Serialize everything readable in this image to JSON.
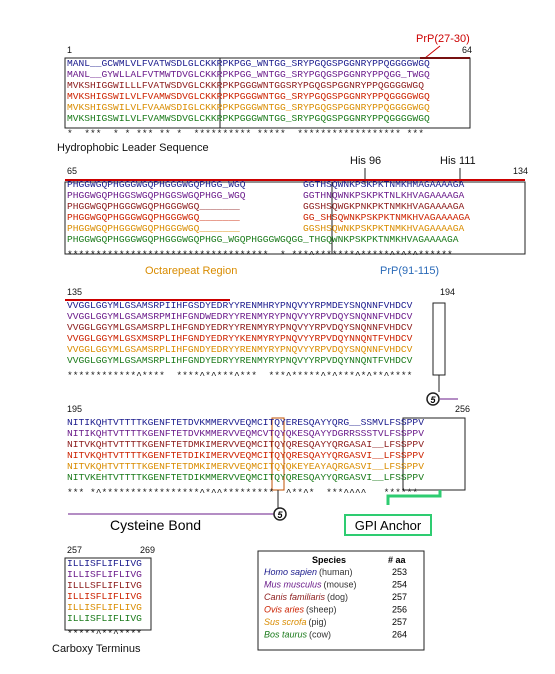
{
  "labels": {
    "prp2730": "PrP(27-30)",
    "hydrophobic": "Hydrophobic Leader Sequence",
    "his96": "His 96",
    "his111": "His 111",
    "octarepeat": "Octarepeat Region",
    "prp91115": "PrP(91-115)",
    "cysteine": "Cysteine Bond",
    "gpi": "GPI Anchor",
    "carboxy": "Carboxy Terminus",
    "circle5a": "5",
    "circle5b": "5"
  },
  "blocks": [
    {
      "start": "1",
      "end": "64",
      "rows": [
        "MANL__GCWMLVLFVATWSDLGLCKKRPKPGG_WNTGG_SRYPGQGSPGGNRYPPQGGGGWGQ",
        "MANL__GYWLLALFVTMWTDVGLCKKRPKPGG_WNTGG_SRYPGQGSPGGNRYPPQGG_TWGQ",
        "MVKSHIGGWILLLFVATWSDVGLCKKRPKPGGGWNTGGSRYPGQGSPGGNRYPPQGGGGWGQ",
        "MVKSHIGSWILVLFVAMWSDVGLCKKRPKPGGGWNTGG_SRYPGQGSPGGNRYPPQGGGGWGQ",
        "MVKSHIGSWILVLFVAAWSDIGLCKKRPKPGGGWNTGG_SRYPGQGSPGGNRYPPQGGGGWGQ",
        "MVKSHIGSWILVLFVAMWSDVGLCKKRPKPGGGWNTGG_SRYPGQGSPGGNRYPPQGGGGWGQ"
      ],
      "conservation": "*  ***  * * *** ** *  ********** *****  ****************** ***"
    },
    {
      "start": "65",
      "end": "134",
      "rows": [
        "PHGGWGQPHGGGWGQPHGGGWGQPHGG_WGQ          GGTHSQWNKPSKPKTNMKHMAGAAAAGA",
        "PHGGWGQPHGGSWGQPHGGSWGQPHGG_WGQ          GGTHNQWNKPSKPKTNLKHVAGAAAAGA",
        "PHGGWGQPHGGGWGQPHGGGWGQ_______           GGSHSQWGKPNKPKTNMKHVAGAAAAGA",
        "PHGGWGQPHGGGWGQPHGGGWGQ_______           GG_SHSQWNKPSKPKTNMKHVAGAAAAGA",
        "PHGGWGQPHGGGWGQPHGGGWGQ_______           GGSHSQWNKPSKPKTNMKHVAGAAAAGA",
        "PHGGWGQPHGGGWGQPHGGGWGQPHGG_WGQPHGGGWGQGG_THGQWNKPSKPKTNMKHVAGAAAAGA"
      ],
      "conservation": "***********************************  * ***^*******^*****^*^*^******"
    },
    {
      "start": "135",
      "end": "194",
      "rows": [
        "VVGGLGGYMLGSAMSRPIIHFGSDYEDRYYRENMHRYPNQVYYRPMDEYSNQNNFVHDCV",
        "VVGGLGGYMLGSAMSRPMIHFGNDWEDRYYRENMYRYPNQVYYRPVDQYSNQNNFVHDCV",
        "VVGGLGGYMLGSAMSRPLIHFGNDYEDRYYRENMYRYPNQVYYRPVDQYSNQNNFVHDCV",
        "VVGGLGGYMLGSXMSRPLIHFGNDYEDRYYKENMYRYPNQVYYRPVDQYNNQNTFVHDCV",
        "VVGGLGGYMLGSAMSRPLIHFGNDYEDRYYRENMYRYPNQVYYRPVDQYSNQNNFVHDCV",
        "VVGGLGGYMLGSAMSRPLIHFGNDYEDRYYRENMYRYPNQVYYRPVDQYNNQNTFVHDCV"
      ],
      "conservation": "************^****  ****^*^***^***  ***^*****^*^***^*^**^****"
    },
    {
      "start": "195",
      "end": "256",
      "rows": [
        "NITIKQHTVTTTTKGENFTETDVKMMERVVEQMCITQYERESQAYYQRG__SSMVLFSSPPV",
        "NITIKQHTVTTTTKGENFTETDVKMMERVVEQMCVTQYQKESQAYYDGRRSSSTVLFSSPPV",
        "NITVKQHTVTTTTKGENFTETDMKIMERVVEQMCITQYQRESQAYYQRGASAI__LFSSPPV",
        "NITVKQHTVTTTTKGENFTETDIKIMERVVEQMCITQYQRESQAYYQRGASVI__LFSSPPV",
        "NITVKQHTVTTTTKGENFTETDMKIMERVVEQMCITQYQKEYEAYAQRGASVI__LFSSPPV",
        "NITVKEHTVTTTTKGENFTETDIKMMERVVEQMCITQYQRESQAYYQRGASVI__LFSSPPV"
      ],
      "conservation": "*** *^*****************^*^^*********  ^**^*  ***^^^^   ******"
    },
    {
      "start": "257",
      "end": "269",
      "rows": [
        "ILLISFLIFLIVG",
        "ILLISFLIFLIVG",
        "ILLLSFLIFLIVG",
        "ILLISFLIFLIVG",
        "ILLISFLIFLIVG",
        "ILLISFLIFLIVG"
      ],
      "conservation": "*****^**^****"
    }
  ],
  "species_table": {
    "header_species": "Species",
    "header_count": "# aa",
    "rows": [
      {
        "latin": "Homo sapien",
        "common": "(human)",
        "count": "253",
        "color": "#1a1a8c"
      },
      {
        "latin": "Mus musculus",
        "common": "(mouse)",
        "count": "254",
        "color": "#6a1b8a"
      },
      {
        "latin": "Canis familiaris",
        "common": "(dog)",
        "count": "257",
        "color": "#8b1a1a"
      },
      {
        "latin": "Ovis aries",
        "common": "(sheep)",
        "count": "256",
        "color": "#cc2200"
      },
      {
        "latin": "Sus scrofa",
        "common": "(pig)",
        "count": "257",
        "color": "#d98c00"
      },
      {
        "latin": "Bos taurus",
        "common": "(cow)",
        "count": "264",
        "color": "#1a7a1a"
      }
    ]
  }
}
